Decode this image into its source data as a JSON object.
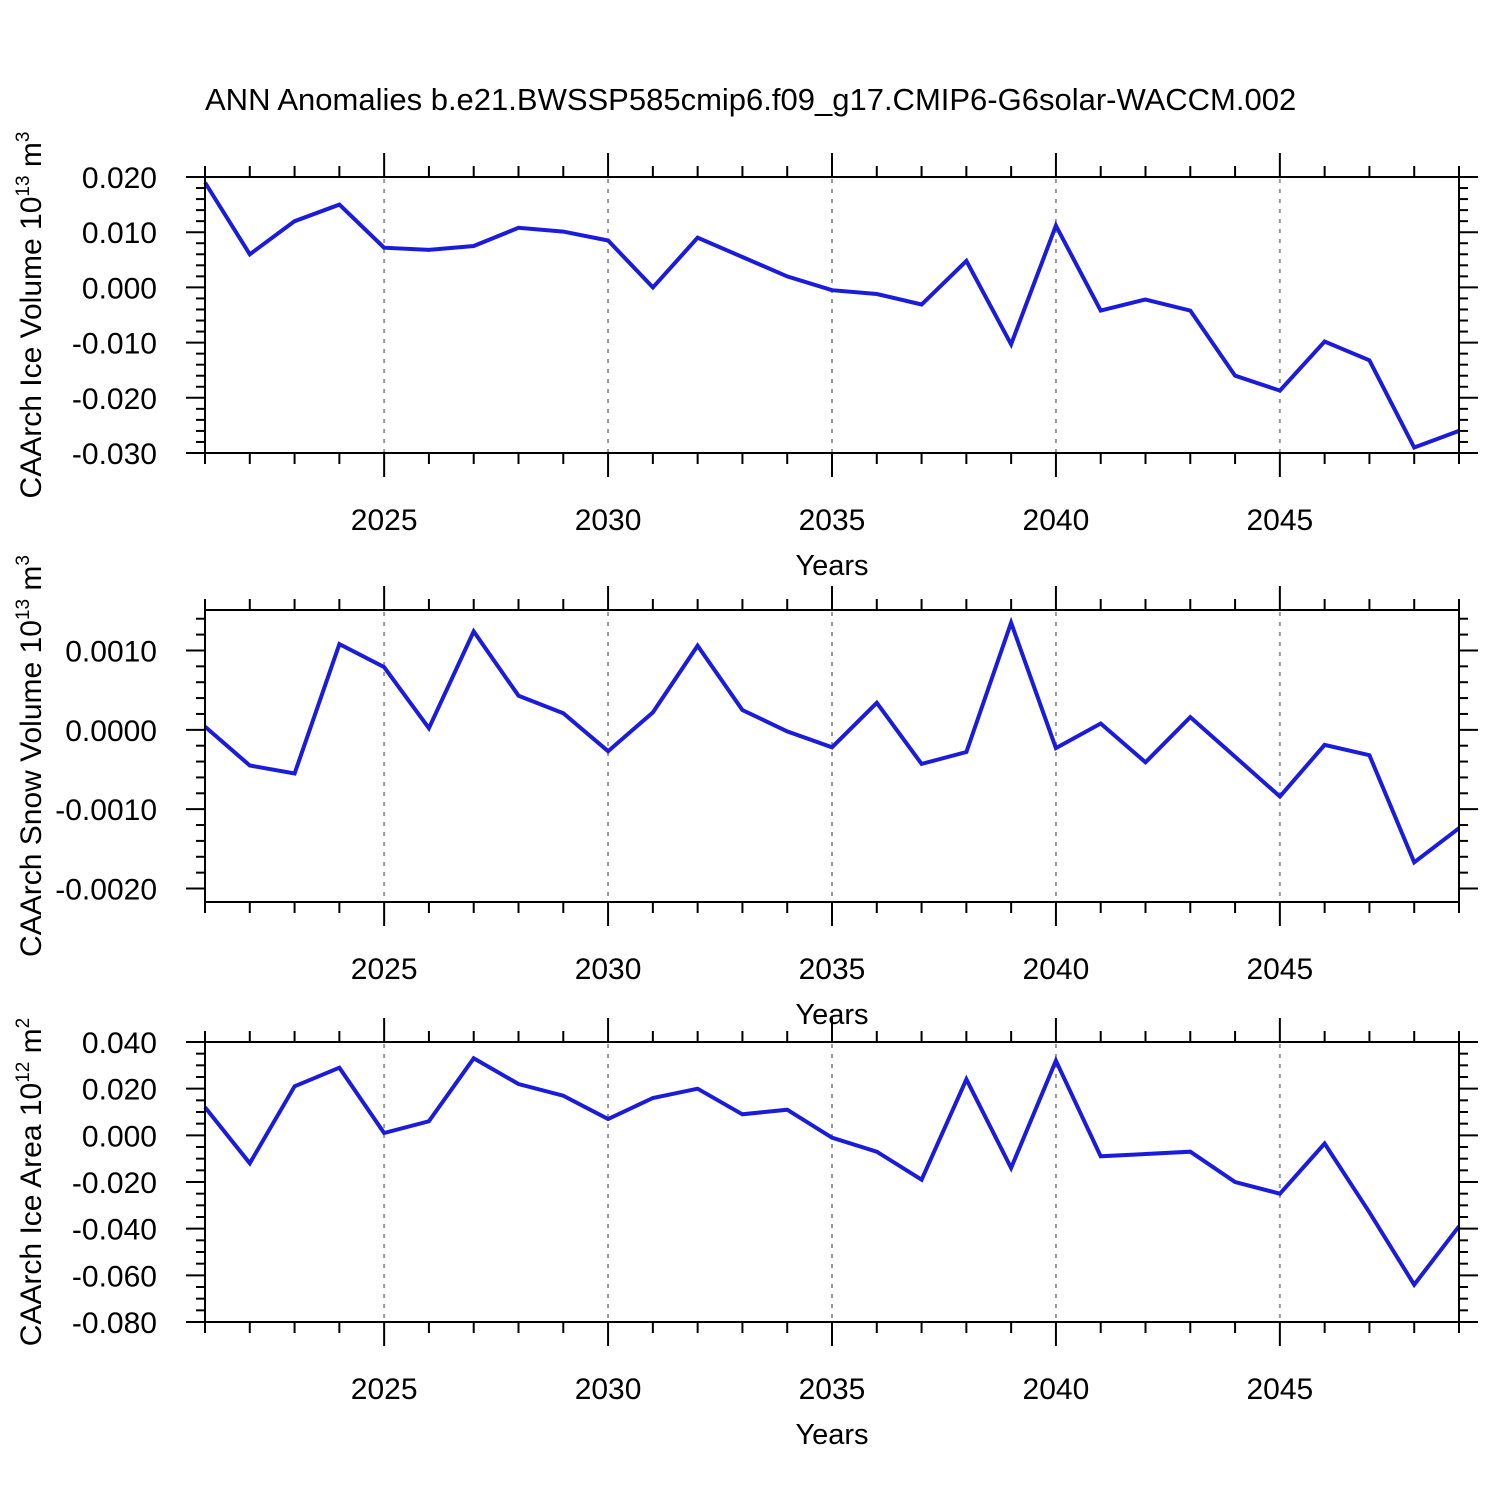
{
  "title": "ANN Anomalies b.e21.BWSSP585cmip6.f09_g17.CMIP6-G6solar-WACCM.002",
  "xlabel": "Years",
  "style": {
    "line_color": "#1b1bdc",
    "grid_color": "#999999",
    "axis_color": "#000000"
  },
  "chart_data": [
    {
      "type": "line",
      "name": "ice-volume",
      "ylabel": "CAArch Ice Volume 10^13 m^3",
      "ylabel_parts": [
        {
          "t": "CAArch Ice Volume 10"
        },
        {
          "t": "13",
          "sup": true
        },
        {
          "t": " m"
        },
        {
          "t": "3",
          "sup": true
        }
      ],
      "xlabel": "Years",
      "xlim": [
        2021,
        2049
      ],
      "ylim": [
        -0.03,
        0.02
      ],
      "xticks_major": [
        2025,
        2030,
        2035,
        2040,
        2045
      ],
      "xtick_labels": [
        "2025",
        "2030",
        "2035",
        "2040",
        "2045"
      ],
      "xminor_step": 1,
      "ytick_values": [
        0.02,
        0.01,
        0.0,
        -0.01,
        -0.02,
        -0.03
      ],
      "ytick_labels": [
        "0.020",
        "0.010",
        "0.000",
        "-0.010",
        "-0.020",
        "-0.030"
      ],
      "yminor_step": 0.002,
      "grid": "vertical-dashed",
      "x": [
        2021,
        2022,
        2023,
        2024,
        2025,
        2026,
        2027,
        2028,
        2029,
        2030,
        2031,
        2032,
        2033,
        2034,
        2035,
        2036,
        2037,
        2038,
        2039,
        2040,
        2041,
        2042,
        2043,
        2044,
        2045,
        2046,
        2047,
        2048,
        2049
      ],
      "values": [
        0.019,
        0.006,
        0.012,
        0.015,
        0.0072,
        0.0068,
        0.0075,
        0.0108,
        0.0101,
        0.0085,
        0.0,
        0.009,
        0.0055,
        0.002,
        -0.0005,
        -0.0012,
        -0.0031,
        0.0048,
        -0.0103,
        0.0112,
        -0.0042,
        -0.0022,
        -0.0042,
        -0.016,
        -0.0187,
        -0.0098,
        -0.0132,
        -0.029,
        -0.026
      ]
    },
    {
      "type": "line",
      "name": "snow-volume",
      "ylabel": "CAArch Snow Volume 10^13 m^3",
      "ylabel_parts": [
        {
          "t": "CAArch Snow Volume 10"
        },
        {
          "t": "13",
          "sup": true
        },
        {
          "t": " m"
        },
        {
          "t": "3",
          "sup": true
        }
      ],
      "xlabel": "Years",
      "xlim": [
        2021,
        2049
      ],
      "ylim": [
        -0.00217,
        0.00151
      ],
      "xticks_major": [
        2025,
        2030,
        2035,
        2040,
        2045
      ],
      "xtick_labels": [
        "2025",
        "2030",
        "2035",
        "2040",
        "2045"
      ],
      "xminor_step": 1,
      "ytick_values": [
        0.001,
        0.0,
        -0.001,
        -0.002
      ],
      "ytick_labels": [
        "0.0010",
        "0.0000",
        "-0.0010",
        "-0.0020"
      ],
      "yminor_step": 0.0002,
      "grid": "vertical-dashed",
      "x": [
        2021,
        2022,
        2023,
        2024,
        2025,
        2026,
        2027,
        2028,
        2029,
        2030,
        2031,
        2032,
        2033,
        2034,
        2035,
        2036,
        2037,
        2038,
        2039,
        2040,
        2041,
        2042,
        2043,
        2044,
        2045,
        2046,
        2047,
        2048,
        2049
      ],
      "values": [
        4e-05,
        -0.00045,
        -0.00055,
        0.00108,
        0.00079,
        2e-05,
        0.00124,
        0.00043,
        0.00021,
        -0.00027,
        0.00022,
        0.00106,
        0.00025,
        -2e-05,
        -0.00022,
        0.00034,
        -0.00043,
        -0.00028,
        0.00135,
        -0.00023,
        8e-05,
        -0.00041,
        0.00016,
        -0.00034,
        -0.00084,
        -0.00019,
        -0.00032,
        -0.00167,
        -0.00124
      ]
    },
    {
      "type": "line",
      "name": "ice-area",
      "ylabel": "CAArch Ice Area 10^12 m^2",
      "ylabel_parts": [
        {
          "t": "CAArch Ice Area 10"
        },
        {
          "t": "12",
          "sup": true
        },
        {
          "t": " m"
        },
        {
          "t": "2",
          "sup": true
        }
      ],
      "xlabel": "Years",
      "xlim": [
        2021,
        2049
      ],
      "ylim": [
        -0.08,
        0.04
      ],
      "xticks_major": [
        2025,
        2030,
        2035,
        2040,
        2045
      ],
      "xtick_labels": [
        "2025",
        "2030",
        "2035",
        "2040",
        "2045"
      ],
      "xminor_step": 1,
      "ytick_values": [
        0.04,
        0.02,
        0.0,
        -0.02,
        -0.04,
        -0.06,
        -0.08
      ],
      "ytick_labels": [
        "0.040",
        "0.020",
        "0.000",
        "-0.020",
        "-0.040",
        "-0.060",
        "-0.080"
      ],
      "yminor_step": 0.005,
      "grid": "vertical-dashed",
      "x": [
        2021,
        2022,
        2023,
        2024,
        2025,
        2026,
        2027,
        2028,
        2029,
        2030,
        2031,
        2032,
        2033,
        2034,
        2035,
        2036,
        2037,
        2038,
        2039,
        2040,
        2041,
        2042,
        2043,
        2044,
        2045,
        2046,
        2047,
        2048,
        2049
      ],
      "values": [
        0.012,
        -0.012,
        0.021,
        0.029,
        0.001,
        0.006,
        0.033,
        0.022,
        0.017,
        0.007,
        0.016,
        0.02,
        0.009,
        0.011,
        -0.001,
        -0.007,
        -0.019,
        0.024,
        -0.014,
        0.032,
        -0.009,
        -0.008,
        -0.007,
        -0.02,
        -0.025,
        -0.0035,
        -0.033,
        -0.064,
        -0.039
      ]
    }
  ]
}
